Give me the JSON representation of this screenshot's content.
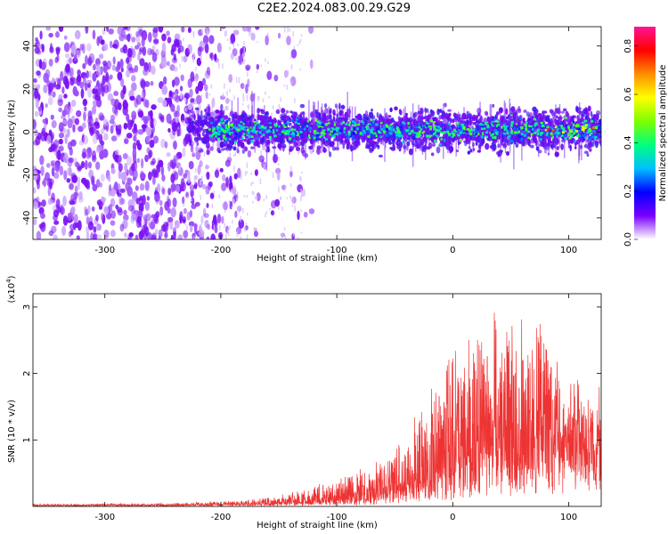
{
  "title": "C2E2.2024.083.00.29.G29",
  "chart_data": [
    {
      "type": "heatmap",
      "xlabel": "Height of straight line (km)",
      "ylabel": "Frequency (Hz)",
      "xlim": [
        -362,
        128
      ],
      "ylim": [
        -50,
        49
      ],
      "xticks": [
        -300,
        -200,
        -100,
        0,
        100
      ],
      "yticks": [
        -40,
        -20,
        0,
        20,
        40
      ],
      "colorbar": {
        "label": "Normalized spectral amplitude",
        "range": [
          0,
          0.88
        ],
        "ticks": [
          "0.0",
          "0.2",
          "0.4",
          "0.6",
          "0.8"
        ],
        "tick_values": [
          0,
          0.2,
          0.4,
          0.6,
          0.8
        ],
        "colors": [
          "#ffffff",
          "#7a00ff",
          "#0000ff",
          "#00bfff",
          "#00ff7f",
          "#7fff00",
          "#ffff00",
          "#ff8c00",
          "#ff0000",
          "#ff1493"
        ]
      },
      "regions": {
        "noise_from_km": -362,
        "noise_to_km": -180,
        "signal_band_from_km": -228,
        "signal_band_center_hz": 1,
        "signal_band_halfwidth_hz": 7
      }
    },
    {
      "type": "line",
      "xlabel": "Height of straight line (km)",
      "ylabel": "SNR (10 * v/v)",
      "yscale_label": "(x10",
      "yscale_exponent": "4",
      "yscale_close": ")",
      "xlim": [
        -362,
        128
      ],
      "ylim": [
        0,
        3.2
      ],
      "xticks": [
        -300,
        -200,
        -100,
        0,
        100
      ],
      "yticks": [
        1,
        2,
        3
      ],
      "color": "#ee3333",
      "envelope": {
        "x": [
          -362,
          -250,
          -180,
          -150,
          -120,
          -100,
          -80,
          -60,
          -40,
          -20,
          0,
          20,
          40,
          60,
          80,
          100,
          128
        ],
        "max": [
          0.04,
          0.05,
          0.1,
          0.18,
          0.3,
          0.45,
          0.6,
          0.8,
          1.1,
          1.75,
          2.6,
          3.0,
          3.0,
          3.1,
          2.9,
          2.0,
          1.8
        ],
        "base": [
          0.02,
          0.02,
          0.03,
          0.04,
          0.06,
          0.08,
          0.1,
          0.15,
          0.25,
          0.4,
          0.6,
          0.75,
          0.85,
          0.85,
          0.9,
          1.0,
          1.0
        ]
      }
    }
  ]
}
